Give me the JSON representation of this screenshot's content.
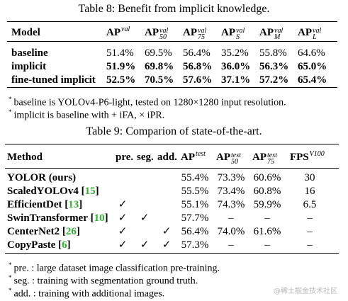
{
  "table8": {
    "title": "Table 8: Benefit from implicit knowledge.",
    "header": [
      "Model",
      {
        "base": "AP",
        "sup": "val"
      },
      {
        "base": "AP",
        "sup": "val",
        "sub": "50"
      },
      {
        "base": "AP",
        "sup": "val",
        "sub": "75"
      },
      {
        "base": "AP",
        "sup": "val",
        "sub": "S"
      },
      {
        "base": "AP",
        "sup": "val",
        "sub": "M"
      },
      {
        "base": "AP",
        "sup": "val",
        "sub": "L"
      }
    ],
    "rows": [
      [
        "baseline",
        "51.4%",
        "69.5%",
        "56.4%",
        "35.2%",
        "55.8%",
        "64.6%"
      ],
      [
        "implicit",
        "51.9%",
        "69.8%",
        "56.8%",
        "36.0%",
        "56.3%",
        "65.0%"
      ],
      [
        "fine-tuned implicit",
        "52.5%",
        "70.5%",
        "57.6%",
        "37.1%",
        "57.2%",
        "65.4%"
      ]
    ],
    "notes": [
      {
        "mark": "*",
        "text": "baseline is YOLOv4-P6-light, tested on 1280×1280 input resolution."
      },
      {
        "mark": "*",
        "text": "implicit is baseline with + iFA, × iPR."
      }
    ]
  },
  "table9": {
    "title": "Table 9: Comparion of state-of-the-art.",
    "header": [
      "Method",
      "pre.",
      "seg.",
      "add.",
      {
        "base": "AP",
        "sup": "test"
      },
      {
        "base": "AP",
        "sup": "test",
        "sub": "50"
      },
      {
        "base": "AP",
        "sup": "test",
        "sub": "75"
      },
      {
        "base": "FPS",
        "sup": "V100"
      }
    ],
    "rows": [
      [
        {
          "name": "YOLOR (ours)"
        },
        null,
        null,
        null,
        "55.4%",
        "73.3%",
        "60.6%",
        "30"
      ],
      [
        {
          "name": "ScaledYOLOv4",
          "ref": "[15]"
        },
        null,
        null,
        null,
        "55.5%",
        "73.4%",
        "60.8%",
        "16"
      ],
      [
        {
          "name": "EfficientDet",
          "ref": "[13]"
        },
        "✓",
        null,
        null,
        "55.1%",
        "74.3%",
        "59.9%",
        "6.5"
      ],
      [
        {
          "name": "SwinTransformer",
          "ref": "[10]"
        },
        "✓",
        "✓",
        null,
        "57.7%",
        "–",
        "–",
        "–"
      ],
      [
        {
          "name": "CenterNet2",
          "ref": "[26]"
        },
        "✓",
        null,
        "✓",
        "56.4%",
        "74.0%",
        "61.6%",
        "–"
      ],
      [
        {
          "name": "CopyPaste",
          "ref": "[6]"
        },
        "✓",
        "✓",
        "✓",
        "57.3%",
        "–",
        "–",
        "–"
      ]
    ],
    "notes": [
      {
        "mark": "*",
        "text": "pre. : large dataset image classification pre-training."
      },
      {
        "mark": "*",
        "text": "seg. : training with segmentation ground truth."
      },
      {
        "mark": "*",
        "text": "add. : training with additional images."
      }
    ]
  },
  "watermark": "@稀土掘金技术社区"
}
